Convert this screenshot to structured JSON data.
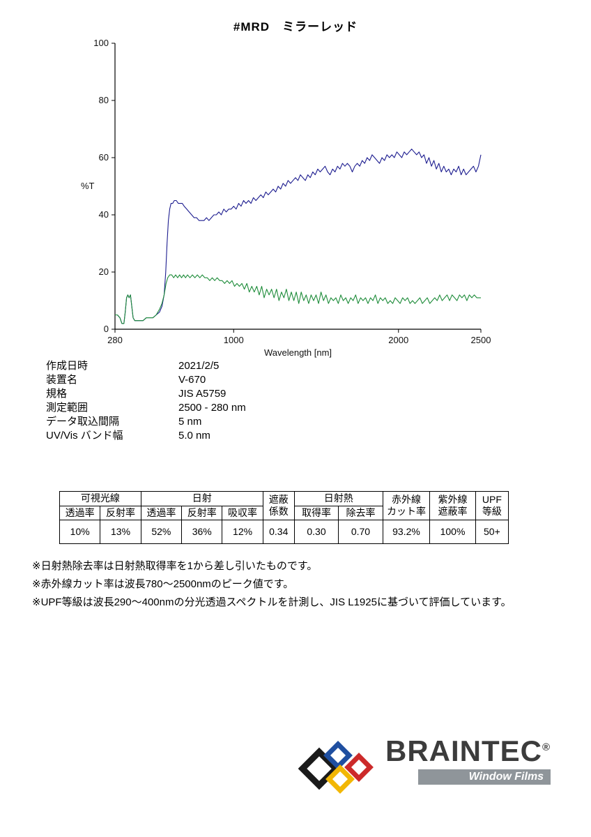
{
  "page": {
    "title": "#MRD　ミラーレッド"
  },
  "chart_data": {
    "type": "line",
    "title": "#MRD ミラーレッド",
    "xlabel": "Wavelength [nm]",
    "ylabel": "%T",
    "xlim": [
      280,
      2500
    ],
    "ylim": [
      0,
      100
    ],
    "xticks": [
      280,
      1000,
      2000,
      2500
    ],
    "yticks": [
      0,
      20,
      40,
      60,
      80,
      100
    ],
    "grid": false,
    "legend": "none",
    "series": [
      {
        "name": "reflectance-navy",
        "color": "#1c1c8f",
        "points": [
          [
            280,
            5
          ],
          [
            295,
            5
          ],
          [
            310,
            4
          ],
          [
            322,
            2
          ],
          [
            334,
            2
          ],
          [
            342,
            6
          ],
          [
            350,
            11
          ],
          [
            358,
            12
          ],
          [
            366,
            11
          ],
          [
            374,
            12
          ],
          [
            382,
            8
          ],
          [
            390,
            4
          ],
          [
            400,
            3
          ],
          [
            415,
            3
          ],
          [
            430,
            3
          ],
          [
            450,
            3
          ],
          [
            470,
            4
          ],
          [
            490,
            4
          ],
          [
            510,
            4
          ],
          [
            530,
            5
          ],
          [
            550,
            6
          ],
          [
            565,
            8
          ],
          [
            578,
            12
          ],
          [
            588,
            20
          ],
          [
            596,
            30
          ],
          [
            604,
            38
          ],
          [
            612,
            42
          ],
          [
            620,
            44
          ],
          [
            630,
            44
          ],
          [
            640,
            45
          ],
          [
            652,
            45
          ],
          [
            664,
            44
          ],
          [
            676,
            44
          ],
          [
            688,
            44
          ],
          [
            700,
            43
          ],
          [
            715,
            42
          ],
          [
            730,
            41
          ],
          [
            745,
            40
          ],
          [
            760,
            39
          ],
          [
            775,
            39
          ],
          [
            790,
            38
          ],
          [
            805,
            38
          ],
          [
            820,
            38
          ],
          [
            835,
            39
          ],
          [
            850,
            38
          ],
          [
            865,
            39
          ],
          [
            880,
            40
          ],
          [
            895,
            40
          ],
          [
            910,
            41
          ],
          [
            925,
            40
          ],
          [
            940,
            42
          ],
          [
            955,
            41
          ],
          [
            970,
            42
          ],
          [
            985,
            42
          ],
          [
            1000,
            43
          ],
          [
            1015,
            42
          ],
          [
            1030,
            44
          ],
          [
            1045,
            43
          ],
          [
            1060,
            45
          ],
          [
            1075,
            44
          ],
          [
            1090,
            45
          ],
          [
            1105,
            44
          ],
          [
            1120,
            46
          ],
          [
            1135,
            45
          ],
          [
            1150,
            46
          ],
          [
            1165,
            47
          ],
          [
            1180,
            46
          ],
          [
            1195,
            48
          ],
          [
            1210,
            47
          ],
          [
            1225,
            48
          ],
          [
            1240,
            49
          ],
          [
            1255,
            48
          ],
          [
            1270,
            50
          ],
          [
            1285,
            49
          ],
          [
            1300,
            51
          ],
          [
            1315,
            50
          ],
          [
            1330,
            52
          ],
          [
            1345,
            51
          ],
          [
            1360,
            52
          ],
          [
            1375,
            53
          ],
          [
            1390,
            52
          ],
          [
            1405,
            54
          ],
          [
            1420,
            53
          ],
          [
            1435,
            52
          ],
          [
            1450,
            54
          ],
          [
            1465,
            53
          ],
          [
            1480,
            55
          ],
          [
            1495,
            54
          ],
          [
            1510,
            56
          ],
          [
            1525,
            55
          ],
          [
            1540,
            56
          ],
          [
            1555,
            57
          ],
          [
            1570,
            55
          ],
          [
            1585,
            54
          ],
          [
            1600,
            56
          ],
          [
            1615,
            55
          ],
          [
            1630,
            57
          ],
          [
            1645,
            56
          ],
          [
            1660,
            58
          ],
          [
            1675,
            57
          ],
          [
            1690,
            58
          ],
          [
            1705,
            57
          ],
          [
            1720,
            55
          ],
          [
            1735,
            57
          ],
          [
            1750,
            58
          ],
          [
            1765,
            57
          ],
          [
            1780,
            59
          ],
          [
            1795,
            58
          ],
          [
            1810,
            60
          ],
          [
            1825,
            59
          ],
          [
            1840,
            61
          ],
          [
            1855,
            60
          ],
          [
            1870,
            59
          ],
          [
            1885,
            58
          ],
          [
            1900,
            60
          ],
          [
            1915,
            59
          ],
          [
            1930,
            61
          ],
          [
            1945,
            60
          ],
          [
            1960,
            61
          ],
          [
            1975,
            60
          ],
          [
            1990,
            62
          ],
          [
            2005,
            61
          ],
          [
            2020,
            60
          ],
          [
            2035,
            62
          ],
          [
            2050,
            61
          ],
          [
            2065,
            62
          ],
          [
            2080,
            63
          ],
          [
            2095,
            62
          ],
          [
            2110,
            61
          ],
          [
            2125,
            62
          ],
          [
            2140,
            60
          ],
          [
            2155,
            61
          ],
          [
            2170,
            58
          ],
          [
            2185,
            60
          ],
          [
            2200,
            57
          ],
          [
            2215,
            59
          ],
          [
            2230,
            56
          ],
          [
            2245,
            58
          ],
          [
            2260,
            55
          ],
          [
            2275,
            57
          ],
          [
            2290,
            55
          ],
          [
            2305,
            56
          ],
          [
            2320,
            54
          ],
          [
            2335,
            56
          ],
          [
            2350,
            55
          ],
          [
            2365,
            57
          ],
          [
            2380,
            54
          ],
          [
            2395,
            56
          ],
          [
            2410,
            54
          ],
          [
            2425,
            55
          ],
          [
            2440,
            56
          ],
          [
            2455,
            57
          ],
          [
            2470,
            55
          ],
          [
            2485,
            57
          ],
          [
            2500,
            61
          ]
        ]
      },
      {
        "name": "transmittance-green",
        "color": "#1e8c3a",
        "points": [
          [
            280,
            5
          ],
          [
            295,
            5
          ],
          [
            310,
            4
          ],
          [
            322,
            2
          ],
          [
            334,
            2
          ],
          [
            342,
            6
          ],
          [
            350,
            11
          ],
          [
            358,
            12
          ],
          [
            366,
            11
          ],
          [
            374,
            12
          ],
          [
            382,
            8
          ],
          [
            390,
            4
          ],
          [
            400,
            3
          ],
          [
            415,
            3
          ],
          [
            430,
            3
          ],
          [
            450,
            3
          ],
          [
            470,
            4
          ],
          [
            490,
            4
          ],
          [
            510,
            4
          ],
          [
            530,
            5
          ],
          [
            550,
            7
          ],
          [
            565,
            9
          ],
          [
            578,
            12
          ],
          [
            590,
            16
          ],
          [
            600,
            18
          ],
          [
            612,
            19
          ],
          [
            624,
            19
          ],
          [
            636,
            18
          ],
          [
            648,
            19
          ],
          [
            660,
            18
          ],
          [
            672,
            19
          ],
          [
            684,
            18
          ],
          [
            696,
            19
          ],
          [
            708,
            18
          ],
          [
            720,
            19
          ],
          [
            735,
            18
          ],
          [
            750,
            19
          ],
          [
            765,
            18
          ],
          [
            780,
            19
          ],
          [
            795,
            18
          ],
          [
            810,
            19
          ],
          [
            825,
            18
          ],
          [
            840,
            18
          ],
          [
            855,
            17
          ],
          [
            870,
            18
          ],
          [
            885,
            17
          ],
          [
            900,
            18
          ],
          [
            915,
            17
          ],
          [
            930,
            17
          ],
          [
            945,
            16
          ],
          [
            960,
            17
          ],
          [
            975,
            16
          ],
          [
            990,
            17
          ],
          [
            1005,
            15
          ],
          [
            1020,
            16
          ],
          [
            1035,
            15
          ],
          [
            1050,
            16
          ],
          [
            1065,
            14
          ],
          [
            1080,
            16
          ],
          [
            1095,
            13
          ],
          [
            1110,
            15
          ],
          [
            1125,
            13
          ],
          [
            1140,
            15
          ],
          [
            1155,
            12
          ],
          [
            1170,
            15
          ],
          [
            1185,
            11
          ],
          [
            1200,
            14
          ],
          [
            1215,
            12
          ],
          [
            1230,
            14
          ],
          [
            1245,
            11
          ],
          [
            1260,
            14
          ],
          [
            1275,
            10
          ],
          [
            1290,
            13
          ],
          [
            1305,
            11
          ],
          [
            1320,
            14
          ],
          [
            1335,
            10
          ],
          [
            1350,
            13
          ],
          [
            1365,
            10
          ],
          [
            1380,
            13
          ],
          [
            1395,
            9
          ],
          [
            1410,
            13
          ],
          [
            1425,
            10
          ],
          [
            1440,
            12
          ],
          [
            1455,
            9
          ],
          [
            1470,
            12
          ],
          [
            1485,
            10
          ],
          [
            1500,
            12
          ],
          [
            1515,
            9
          ],
          [
            1530,
            13
          ],
          [
            1545,
            10
          ],
          [
            1560,
            12
          ],
          [
            1575,
            9
          ],
          [
            1590,
            11
          ],
          [
            1605,
            10
          ],
          [
            1620,
            11
          ],
          [
            1635,
            9
          ],
          [
            1650,
            12
          ],
          [
            1665,
            10
          ],
          [
            1680,
            11
          ],
          [
            1695,
            9
          ],
          [
            1710,
            11
          ],
          [
            1725,
            10
          ],
          [
            1740,
            12
          ],
          [
            1755,
            9
          ],
          [
            1770,
            11
          ],
          [
            1785,
            10
          ],
          [
            1800,
            11
          ],
          [
            1815,
            9
          ],
          [
            1830,
            11
          ],
          [
            1845,
            10
          ],
          [
            1860,
            12
          ],
          [
            1875,
            9
          ],
          [
            1890,
            11
          ],
          [
            1905,
            10
          ],
          [
            1920,
            11
          ],
          [
            1935,
            9
          ],
          [
            1950,
            10
          ],
          [
            1965,
            9
          ],
          [
            1980,
            11
          ],
          [
            1995,
            10
          ],
          [
            2010,
            9
          ],
          [
            2025,
            11
          ],
          [
            2040,
            10
          ],
          [
            2055,
            11
          ],
          [
            2070,
            9
          ],
          [
            2085,
            10
          ],
          [
            2100,
            9
          ],
          [
            2115,
            10
          ],
          [
            2130,
            11
          ],
          [
            2145,
            9
          ],
          [
            2160,
            10
          ],
          [
            2175,
            11
          ],
          [
            2190,
            9
          ],
          [
            2205,
            10
          ],
          [
            2220,
            11
          ],
          [
            2235,
            10
          ],
          [
            2250,
            12
          ],
          [
            2265,
            10
          ],
          [
            2280,
            11
          ],
          [
            2295,
            12
          ],
          [
            2310,
            10
          ],
          [
            2325,
            12
          ],
          [
            2340,
            11
          ],
          [
            2355,
            10
          ],
          [
            2370,
            12
          ],
          [
            2385,
            11
          ],
          [
            2400,
            12
          ],
          [
            2415,
            10
          ],
          [
            2430,
            12
          ],
          [
            2445,
            11
          ],
          [
            2460,
            12
          ],
          [
            2475,
            11
          ],
          [
            2490,
            11
          ],
          [
            2500,
            11
          ]
        ]
      }
    ]
  },
  "metadata": {
    "rows": [
      {
        "label": "作成日時",
        "value": "2021/2/5"
      },
      {
        "label": "装置名",
        "value": "V-670"
      },
      {
        "label": "規格",
        "value": "JIS A5759"
      },
      {
        "label": "測定範囲",
        "value": "2500 - 280 nm"
      },
      {
        "label": "データ取込間隔",
        "value": "5 nm"
      },
      {
        "label": "UV/Vis バンド幅",
        "value": "5.0 nm"
      }
    ]
  },
  "results_table": {
    "groups": {
      "visible": "可視光線",
      "solar": "日射",
      "shading": "遮蔽\n係数",
      "solar_heat": "日射熱",
      "ir_cut": "赤外線\nカット率",
      "uv_block": "紫外線\n遮蔽率",
      "upf": "UPF\n等級"
    },
    "subheaders": [
      "透過率",
      "反射率",
      "透過率",
      "反射率",
      "吸収率",
      "取得率",
      "除去率"
    ],
    "values": [
      "10%",
      "13%",
      "52%",
      "36%",
      "12%",
      "0.34",
      "0.30",
      "0.70",
      "93.2%",
      "100%",
      "50+"
    ]
  },
  "notes": [
    "※日射熱除去率は日射熱取得率を1から差し引いたものです。",
    "※赤外線カット率は波長780〜2500nmのピーク値です。",
    "※UPF等級は波長290〜400nmの分光透過スペクトルを計測し、JIS L1925に基づいて評価しています。"
  ],
  "logo": {
    "brand": "BRAINTEC",
    "registered_mark": "®",
    "tagline": "Window Films",
    "diamond_colors": [
      "#1a1a1a",
      "#1f4fa0",
      "#f2b705",
      "#cc2a2a"
    ]
  }
}
